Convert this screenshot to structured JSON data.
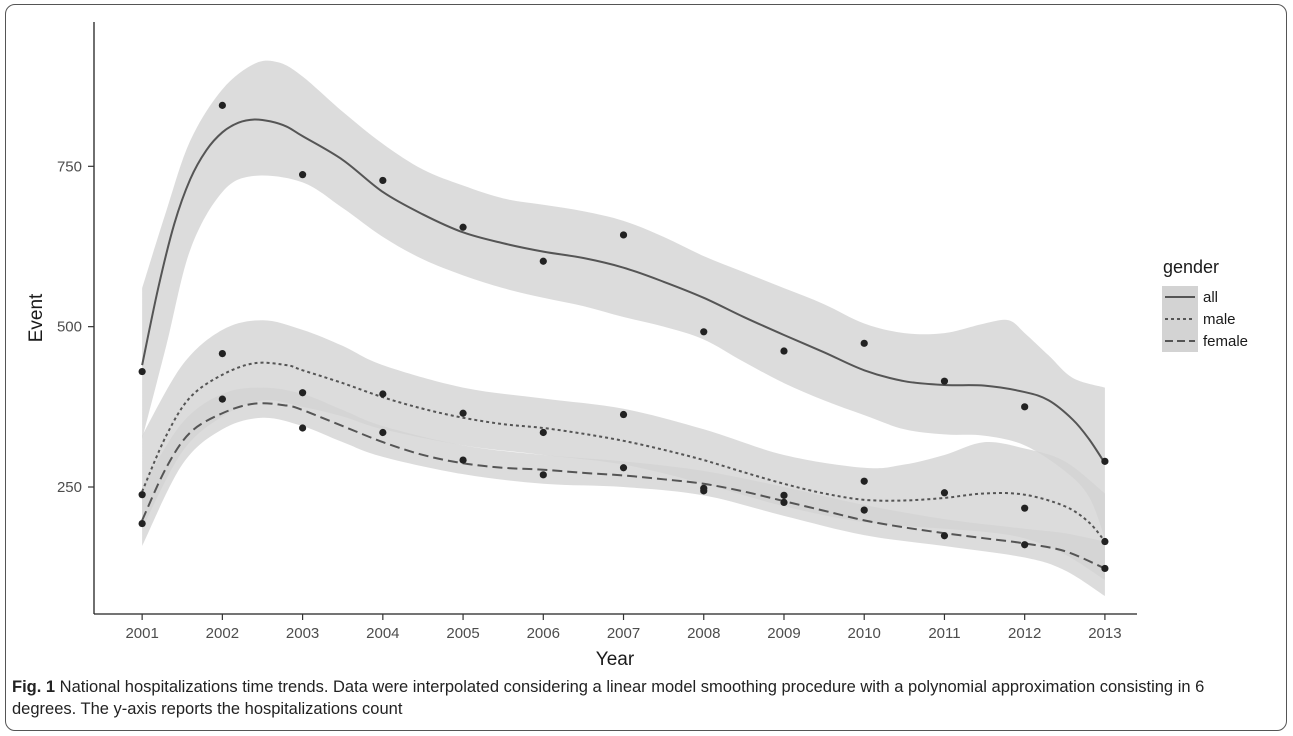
{
  "caption": {
    "label": "Fig. 1",
    "text": " National hospitalizations time trends. Data were interpolated considering a linear model smoothing procedure with a polynomial approximation consisting in 6 degrees. The y-axis reports the hospitalizations count"
  },
  "chart_data": {
    "type": "scatter",
    "title": "",
    "xlabel": "Year",
    "ylabel": "Event",
    "x": [
      2001,
      2002,
      2003,
      2004,
      2005,
      2006,
      2007,
      2008,
      2009,
      2010,
      2011,
      2012,
      2013
    ],
    "x_tick_labels": [
      "2001",
      "2002",
      "2003",
      "2004",
      "2005",
      "2006",
      "2007",
      "2008",
      "2009",
      "2010",
      "2011",
      "2012",
      "2013"
    ],
    "y_ticks": [
      250,
      500,
      750
    ],
    "y_tick_labels": [
      "250",
      "500",
      "750"
    ],
    "xlim": [
      2000.4,
      2013.4
    ],
    "ylim": [
      52,
      975
    ],
    "grid": false,
    "legend": {
      "title": "gender",
      "placement": "right"
    },
    "colors": {
      "line": "#555555",
      "band": "#d3d3d3",
      "point": "#222222"
    },
    "series": [
      {
        "name": "all",
        "line_style": "solid",
        "points": [
          430,
          845,
          737,
          728,
          655,
          602,
          643,
          492,
          462,
          474,
          415,
          375,
          290
        ],
        "fit": [
          [
            2001,
            440
          ],
          [
            2001.2,
            560
          ],
          [
            2001.4,
            660
          ],
          [
            2001.6,
            730
          ],
          [
            2001.8,
            775
          ],
          [
            2002,
            803
          ],
          [
            2002.2,
            818
          ],
          [
            2002.4,
            823
          ],
          [
            2002.6,
            820
          ],
          [
            2002.8,
            812
          ],
          [
            2003,
            797
          ],
          [
            2003.5,
            760
          ],
          [
            2004,
            710
          ],
          [
            2004.5,
            675
          ],
          [
            2005,
            647
          ],
          [
            2005.5,
            630
          ],
          [
            2006,
            617
          ],
          [
            2006.5,
            607
          ],
          [
            2007,
            592
          ],
          [
            2007.5,
            570
          ],
          [
            2008,
            545
          ],
          [
            2008.5,
            515
          ],
          [
            2009,
            487
          ],
          [
            2009.5,
            460
          ],
          [
            2010,
            432
          ],
          [
            2010.5,
            415
          ],
          [
            2011,
            409
          ],
          [
            2011.5,
            408
          ],
          [
            2012,
            398
          ],
          [
            2012.3,
            385
          ],
          [
            2012.6,
            355
          ],
          [
            2012.8,
            325
          ],
          [
            2013,
            287
          ]
        ],
        "band_low": [
          [
            2001,
            325
          ],
          [
            2001.3,
            470
          ],
          [
            2001.6,
            620
          ],
          [
            2002,
            710
          ],
          [
            2002.4,
            735
          ],
          [
            2003,
            725
          ],
          [
            2003.5,
            685
          ],
          [
            2004,
            640
          ],
          [
            2004.5,
            605
          ],
          [
            2005,
            580
          ],
          [
            2005.5,
            560
          ],
          [
            2006,
            545
          ],
          [
            2006.5,
            532
          ],
          [
            2007,
            515
          ],
          [
            2007.5,
            500
          ],
          [
            2008,
            480
          ],
          [
            2008.5,
            445
          ],
          [
            2009,
            412
          ],
          [
            2009.5,
            385
          ],
          [
            2010,
            362
          ],
          [
            2010.5,
            340
          ],
          [
            2011,
            332
          ],
          [
            2011.5,
            330
          ],
          [
            2012,
            315
          ],
          [
            2012.5,
            275
          ],
          [
            2012.8,
            235
          ],
          [
            2013,
            170
          ]
        ],
        "band_high": [
          [
            2001,
            560
          ],
          [
            2001.3,
            680
          ],
          [
            2001.6,
            790
          ],
          [
            2002,
            870
          ],
          [
            2002.4,
            910
          ],
          [
            2002.7,
            912
          ],
          [
            2003,
            890
          ],
          [
            2003.5,
            835
          ],
          [
            2004,
            785
          ],
          [
            2004.5,
            745
          ],
          [
            2005,
            720
          ],
          [
            2005.5,
            700
          ],
          [
            2006,
            690
          ],
          [
            2006.5,
            680
          ],
          [
            2007,
            665
          ],
          [
            2007.5,
            640
          ],
          [
            2008,
            610
          ],
          [
            2008.5,
            585
          ],
          [
            2009,
            560
          ],
          [
            2009.5,
            535
          ],
          [
            2010,
            505
          ],
          [
            2010.5,
            490
          ],
          [
            2011,
            490
          ],
          [
            2011.5,
            505
          ],
          [
            2011.8,
            510
          ],
          [
            2012,
            490
          ],
          [
            2012.3,
            455
          ],
          [
            2012.6,
            420
          ],
          [
            2013,
            405
          ]
        ]
      },
      {
        "name": "male",
        "line_style": "dotted",
        "points": [
          238,
          458,
          397,
          395,
          365,
          335,
          363,
          248,
          237,
          259,
          241,
          217,
          165
        ],
        "fit": [
          [
            2001,
            243
          ],
          [
            2001.3,
            330
          ],
          [
            2001.6,
            390
          ],
          [
            2002,
            425
          ],
          [
            2002.4,
            443
          ],
          [
            2002.8,
            440
          ],
          [
            2003,
            432
          ],
          [
            2003.5,
            412
          ],
          [
            2004,
            390
          ],
          [
            2004.5,
            372
          ],
          [
            2005,
            358
          ],
          [
            2005.5,
            348
          ],
          [
            2006,
            342
          ],
          [
            2006.5,
            333
          ],
          [
            2007,
            322
          ],
          [
            2007.5,
            308
          ],
          [
            2008,
            292
          ],
          [
            2008.5,
            273
          ],
          [
            2009,
            255
          ],
          [
            2009.5,
            240
          ],
          [
            2010,
            230
          ],
          [
            2010.5,
            229
          ],
          [
            2011,
            233
          ],
          [
            2011.5,
            240
          ],
          [
            2012,
            238
          ],
          [
            2012.5,
            220
          ],
          [
            2012.8,
            195
          ],
          [
            2013,
            165
          ]
        ],
        "band_low": [
          [
            2001,
            185
          ],
          [
            2001.5,
            305
          ],
          [
            2002,
            360
          ],
          [
            2002.5,
            385
          ],
          [
            2003,
            375
          ],
          [
            2003.5,
            360
          ],
          [
            2004,
            340
          ],
          [
            2005,
            315
          ],
          [
            2006,
            300
          ],
          [
            2007,
            285
          ],
          [
            2008,
            255
          ],
          [
            2009,
            220
          ],
          [
            2010,
            195
          ],
          [
            2011,
            185
          ],
          [
            2011.5,
            180
          ],
          [
            2012,
            170
          ],
          [
            2012.5,
            145
          ],
          [
            2013,
            105
          ]
        ],
        "band_high": [
          [
            2001,
            330
          ],
          [
            2001.5,
            440
          ],
          [
            2002,
            495
          ],
          [
            2002.5,
            510
          ],
          [
            2003,
            495
          ],
          [
            2003.5,
            470
          ],
          [
            2004,
            440
          ],
          [
            2005,
            405
          ],
          [
            2006,
            388
          ],
          [
            2007,
            372
          ],
          [
            2008,
            340
          ],
          [
            2009,
            300
          ],
          [
            2010,
            280
          ],
          [
            2010.5,
            285
          ],
          [
            2011,
            300
          ],
          [
            2011.5,
            320
          ],
          [
            2012,
            310
          ],
          [
            2012.5,
            290
          ],
          [
            2013,
            240
          ]
        ]
      },
      {
        "name": "female",
        "line_style": "dashed",
        "points": [
          193,
          387,
          342,
          335,
          292,
          269,
          280,
          244,
          226,
          214,
          174,
          160,
          123
        ],
        "fit": [
          [
            2001,
            198
          ],
          [
            2001.3,
            280
          ],
          [
            2001.6,
            335
          ],
          [
            2002,
            365
          ],
          [
            2002.4,
            380
          ],
          [
            2002.8,
            377
          ],
          [
            2003,
            370
          ],
          [
            2003.5,
            345
          ],
          [
            2004,
            320
          ],
          [
            2004.5,
            300
          ],
          [
            2005,
            287
          ],
          [
            2005.5,
            280
          ],
          [
            2006,
            277
          ],
          [
            2006.5,
            272
          ],
          [
            2007,
            268
          ],
          [
            2007.5,
            262
          ],
          [
            2008,
            255
          ],
          [
            2008.5,
            243
          ],
          [
            2009,
            228
          ],
          [
            2009.5,
            213
          ],
          [
            2010,
            198
          ],
          [
            2010.5,
            187
          ],
          [
            2011,
            178
          ],
          [
            2011.5,
            170
          ],
          [
            2012,
            162
          ],
          [
            2012.5,
            150
          ],
          [
            2013,
            123
          ]
        ],
        "band_low": [
          [
            2001,
            158
          ],
          [
            2001.5,
            285
          ],
          [
            2002,
            340
          ],
          [
            2002.5,
            358
          ],
          [
            2003,
            345
          ],
          [
            2003.5,
            320
          ],
          [
            2004,
            297
          ],
          [
            2005,
            270
          ],
          [
            2006,
            255
          ],
          [
            2007,
            250
          ],
          [
            2008,
            237
          ],
          [
            2009,
            205
          ],
          [
            2010,
            175
          ],
          [
            2011,
            158
          ],
          [
            2012,
            140
          ],
          [
            2012.5,
            120
          ],
          [
            2013,
            80
          ]
        ],
        "band_high": [
          [
            2001,
            250
          ],
          [
            2001.5,
            350
          ],
          [
            2002,
            395
          ],
          [
            2002.5,
            405
          ],
          [
            2003,
            395
          ],
          [
            2003.5,
            370
          ],
          [
            2004,
            345
          ],
          [
            2005,
            315
          ],
          [
            2006,
            300
          ],
          [
            2007,
            290
          ],
          [
            2008,
            275
          ],
          [
            2009,
            250
          ],
          [
            2010,
            222
          ],
          [
            2011,
            200
          ],
          [
            2012,
            185
          ],
          [
            2012.5,
            178
          ],
          [
            2013,
            165
          ]
        ]
      }
    ]
  }
}
